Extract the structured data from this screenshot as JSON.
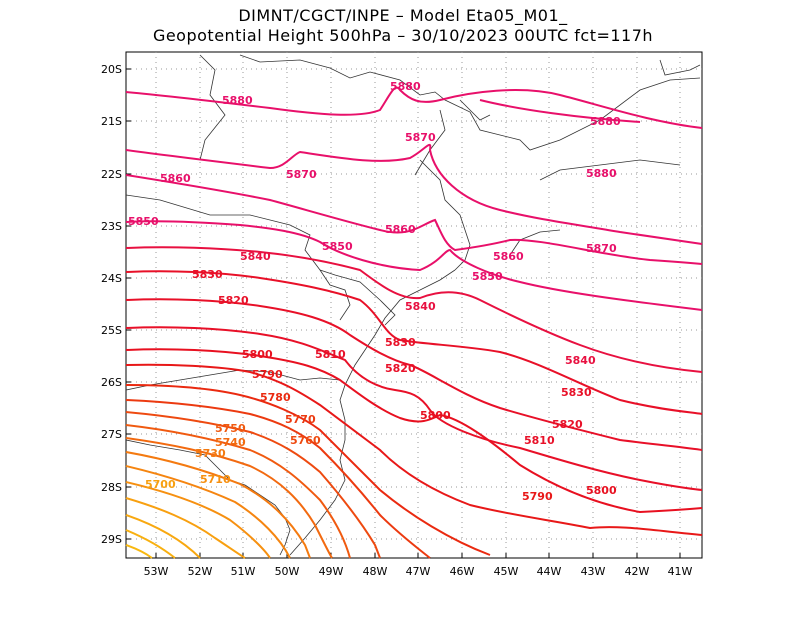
{
  "title": {
    "line1": "DIMNT/CGCT/INPE –  Model Eta05_M01_",
    "line2": "Geopotential Height 500hPa –  30/10/2023 00UTC fct=117h"
  },
  "axes": {
    "lat_labels": [
      "20S",
      "21S",
      "22S",
      "23S",
      "24S",
      "25S",
      "26S",
      "27S",
      "28S",
      "29S"
    ],
    "lon_labels": [
      "53W",
      "52W",
      "51W",
      "50W",
      "49W",
      "48W",
      "47W",
      "46W",
      "45W",
      "44W",
      "43W",
      "42W",
      "41W"
    ]
  },
  "contour_labels": [
    {
      "text": "5880",
      "color": "#e8106a"
    },
    {
      "text": "5880",
      "color": "#e8106a"
    },
    {
      "text": "5880",
      "color": "#e8106a"
    },
    {
      "text": "5880",
      "color": "#e8106a"
    },
    {
      "text": "5870",
      "color": "#e8106a"
    },
    {
      "text": "5870",
      "color": "#e8106a"
    },
    {
      "text": "5870",
      "color": "#e8106a"
    },
    {
      "text": "5860",
      "color": "#e8106a"
    },
    {
      "text": "5860",
      "color": "#e8106a"
    },
    {
      "text": "5860",
      "color": "#e8106a"
    },
    {
      "text": "5850",
      "color": "#e8106a"
    },
    {
      "text": "5850",
      "color": "#e8106a"
    },
    {
      "text": "5850",
      "color": "#e8106a"
    },
    {
      "text": "5840",
      "color": "#e81040"
    },
    {
      "text": "5840",
      "color": "#e81040"
    },
    {
      "text": "5840",
      "color": "#e81040"
    },
    {
      "text": "5830",
      "color": "#e81028"
    },
    {
      "text": "5830",
      "color": "#e81028"
    },
    {
      "text": "5830",
      "color": "#e81028"
    },
    {
      "text": "5820",
      "color": "#e81028"
    },
    {
      "text": "5820",
      "color": "#e81028"
    },
    {
      "text": "5820",
      "color": "#e81028"
    },
    {
      "text": "5810",
      "color": "#e81028"
    },
    {
      "text": "5810",
      "color": "#e81028"
    },
    {
      "text": "5800",
      "color": "#e81020"
    },
    {
      "text": "5800",
      "color": "#e81020"
    },
    {
      "text": "5800",
      "color": "#e81020"
    },
    {
      "text": "5790",
      "color": "#e81818"
    },
    {
      "text": "5790",
      "color": "#e81818"
    },
    {
      "text": "5780",
      "color": "#ea2a10"
    },
    {
      "text": "5770",
      "color": "#ec3a10"
    },
    {
      "text": "5760",
      "color": "#ee4a10"
    },
    {
      "text": "5750",
      "color": "#f05a10"
    },
    {
      "text": "5740",
      "color": "#f26a10"
    },
    {
      "text": "5730",
      "color": "#f47a10"
    },
    {
      "text": "5710",
      "color": "#f69010"
    },
    {
      "text": "5700",
      "color": "#f8a010"
    }
  ]
}
